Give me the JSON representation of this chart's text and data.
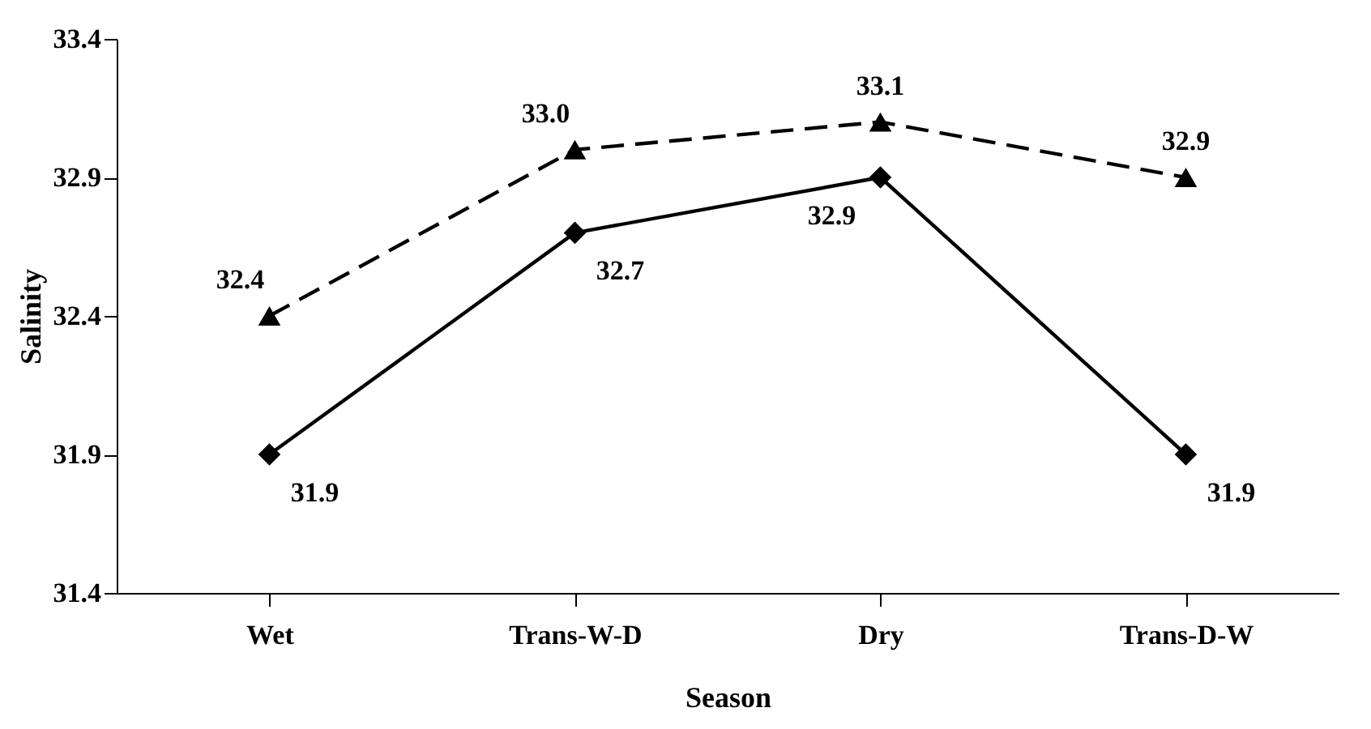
{
  "chart_data": {
    "type": "line",
    "xlabel": "Season",
    "ylabel": "Salinity",
    "categories": [
      "Wet",
      "Trans-W-D",
      "Dry",
      "Trans-D-W"
    ],
    "series": [
      {
        "color": "#000000",
        "values": [
          32.4,
          33.0,
          33.1,
          32.9
        ],
        "value_labels": [
          "32.4",
          "33.0",
          "33.1",
          "32.9"
        ],
        "marker": "triangle",
        "line_style": "dashed"
      },
      {
        "color": "#000000",
        "values": [
          31.9,
          32.7,
          32.9,
          31.9
        ],
        "value_labels": [
          "31.9",
          "32.7",
          "32.9",
          "31.9"
        ],
        "marker": "diamond",
        "line_style": "solid"
      }
    ],
    "ylim": [
      31.4,
      33.4
    ],
    "yticks": [
      31.4,
      31.9,
      32.4,
      32.9,
      33.4
    ],
    "grid": false
  }
}
